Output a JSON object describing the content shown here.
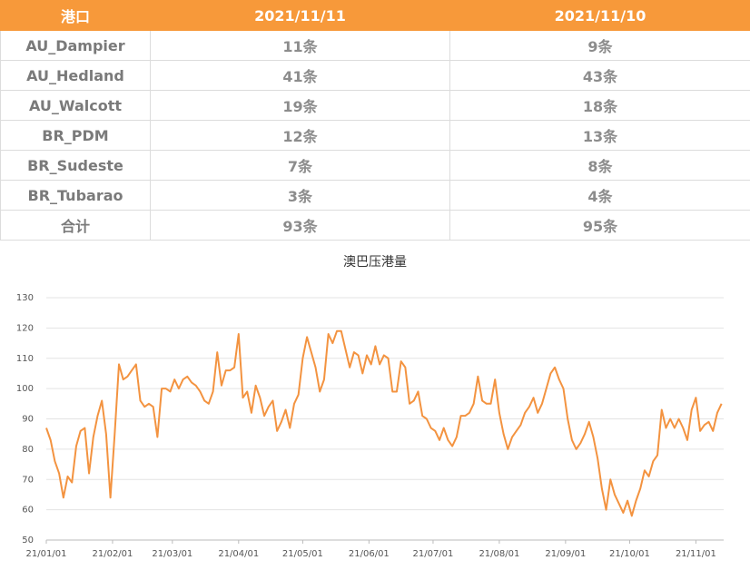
{
  "table": {
    "header": [
      "港口",
      "2021/11/11",
      "2021/11/10"
    ],
    "rows": [
      [
        "AU_Dampier",
        "11条",
        "9条"
      ],
      [
        "AU_Hedland",
        "41条",
        "43条"
      ],
      [
        "AU_Walcott",
        "19条",
        "18条"
      ],
      [
        "BR_PDM",
        "12条",
        "13条"
      ],
      [
        "BR_Sudeste",
        "7条",
        "8条"
      ],
      [
        "BR_Tubarao",
        "3条",
        "4条"
      ],
      [
        "合计",
        "93条",
        "95条"
      ]
    ]
  },
  "chart_data": {
    "type": "line",
    "title": "澳巴压港量",
    "x": [
      0,
      2,
      4,
      6,
      8,
      10,
      12,
      14,
      16,
      18,
      20,
      22,
      24,
      26,
      28,
      30,
      32,
      34,
      36,
      38,
      40,
      42,
      44,
      46,
      48,
      50,
      52,
      54,
      56,
      58,
      60,
      62,
      64,
      66,
      68,
      70,
      72,
      74,
      76,
      78,
      80,
      82,
      84,
      86,
      88,
      90,
      92,
      94,
      96,
      98,
      100,
      102,
      104,
      106,
      108,
      110,
      112,
      114,
      116,
      118,
      120,
      122,
      124,
      126,
      128,
      130,
      132,
      134,
      136,
      138,
      140,
      142,
      144,
      146,
      148,
      150,
      152,
      154,
      156,
      158,
      160,
      162,
      164,
      166,
      168,
      170,
      172,
      174,
      176,
      178,
      180,
      182,
      184,
      186,
      188,
      190,
      192,
      194,
      196,
      198,
      200,
      202,
      204,
      206,
      208,
      210,
      212,
      214,
      216,
      218,
      220,
      222,
      224,
      226,
      228,
      230,
      232,
      234,
      236,
      238,
      240,
      242,
      244,
      246,
      248,
      250,
      252,
      254,
      256,
      258,
      260,
      262,
      264,
      266,
      268,
      270,
      272,
      274,
      276,
      278,
      280,
      282,
      284,
      286,
      288,
      290,
      292,
      294,
      296,
      298,
      300,
      302,
      304,
      306,
      308,
      310,
      312,
      314,
      316
    ],
    "series": [
      {
        "color": "#f39340",
        "values": [
          87,
          83,
          76,
          72,
          64,
          71,
          69,
          81,
          86,
          87,
          72,
          84,
          91,
          96,
          85,
          64,
          85,
          108,
          103,
          104,
          106,
          108,
          96,
          94,
          95,
          94,
          84,
          100,
          100,
          99,
          103,
          100,
          103,
          104,
          102,
          101,
          99,
          96,
          95,
          99,
          112,
          101,
          106,
          106,
          107,
          118,
          97,
          99,
          92,
          101,
          97,
          91,
          94,
          96,
          86,
          89,
          93,
          87,
          95,
          98,
          110,
          117,
          112,
          107,
          99,
          103,
          118,
          115,
          119,
          119,
          113,
          107,
          112,
          111,
          105,
          111,
          108,
          114,
          108,
          111,
          110,
          99,
          99,
          109,
          107,
          95,
          96,
          99,
          91,
          90,
          87,
          86,
          83,
          87,
          83,
          81,
          84,
          91,
          91,
          92,
          95,
          104,
          96,
          95,
          95,
          103,
          92,
          85,
          80,
          84,
          86,
          88,
          92,
          94,
          97,
          92,
          95,
          100,
          105,
          107,
          103,
          100,
          90,
          83,
          80,
          82,
          85,
          89,
          84,
          77,
          67,
          60,
          70,
          65,
          62,
          59,
          63,
          58,
          63,
          67,
          73,
          71,
          76,
          78,
          93,
          87,
          90,
          87,
          90,
          87,
          83,
          93,
          97,
          86,
          88,
          89,
          86,
          92,
          95
        ]
      }
    ],
    "xlim": [
      0,
      317
    ],
    "xticks": [
      {
        "value": 0,
        "label": "21/01/01"
      },
      {
        "value": 31,
        "label": "21/02/01"
      },
      {
        "value": 59,
        "label": "21/03/01"
      },
      {
        "value": 90,
        "label": "21/04/01"
      },
      {
        "value": 120,
        "label": "21/05/01"
      },
      {
        "value": 151,
        "label": "21/06/01"
      },
      {
        "value": 181,
        "label": "21/07/01"
      },
      {
        "value": 212,
        "label": "21/08/01"
      },
      {
        "value": 243,
        "label": "21/09/01"
      },
      {
        "value": 273,
        "label": "21/10/01"
      },
      {
        "value": 304,
        "label": "21/11/01"
      }
    ],
    "ylim": [
      50,
      130
    ],
    "yticks": [
      50,
      60,
      70,
      80,
      90,
      100,
      110,
      120,
      130
    ],
    "grid": true
  }
}
